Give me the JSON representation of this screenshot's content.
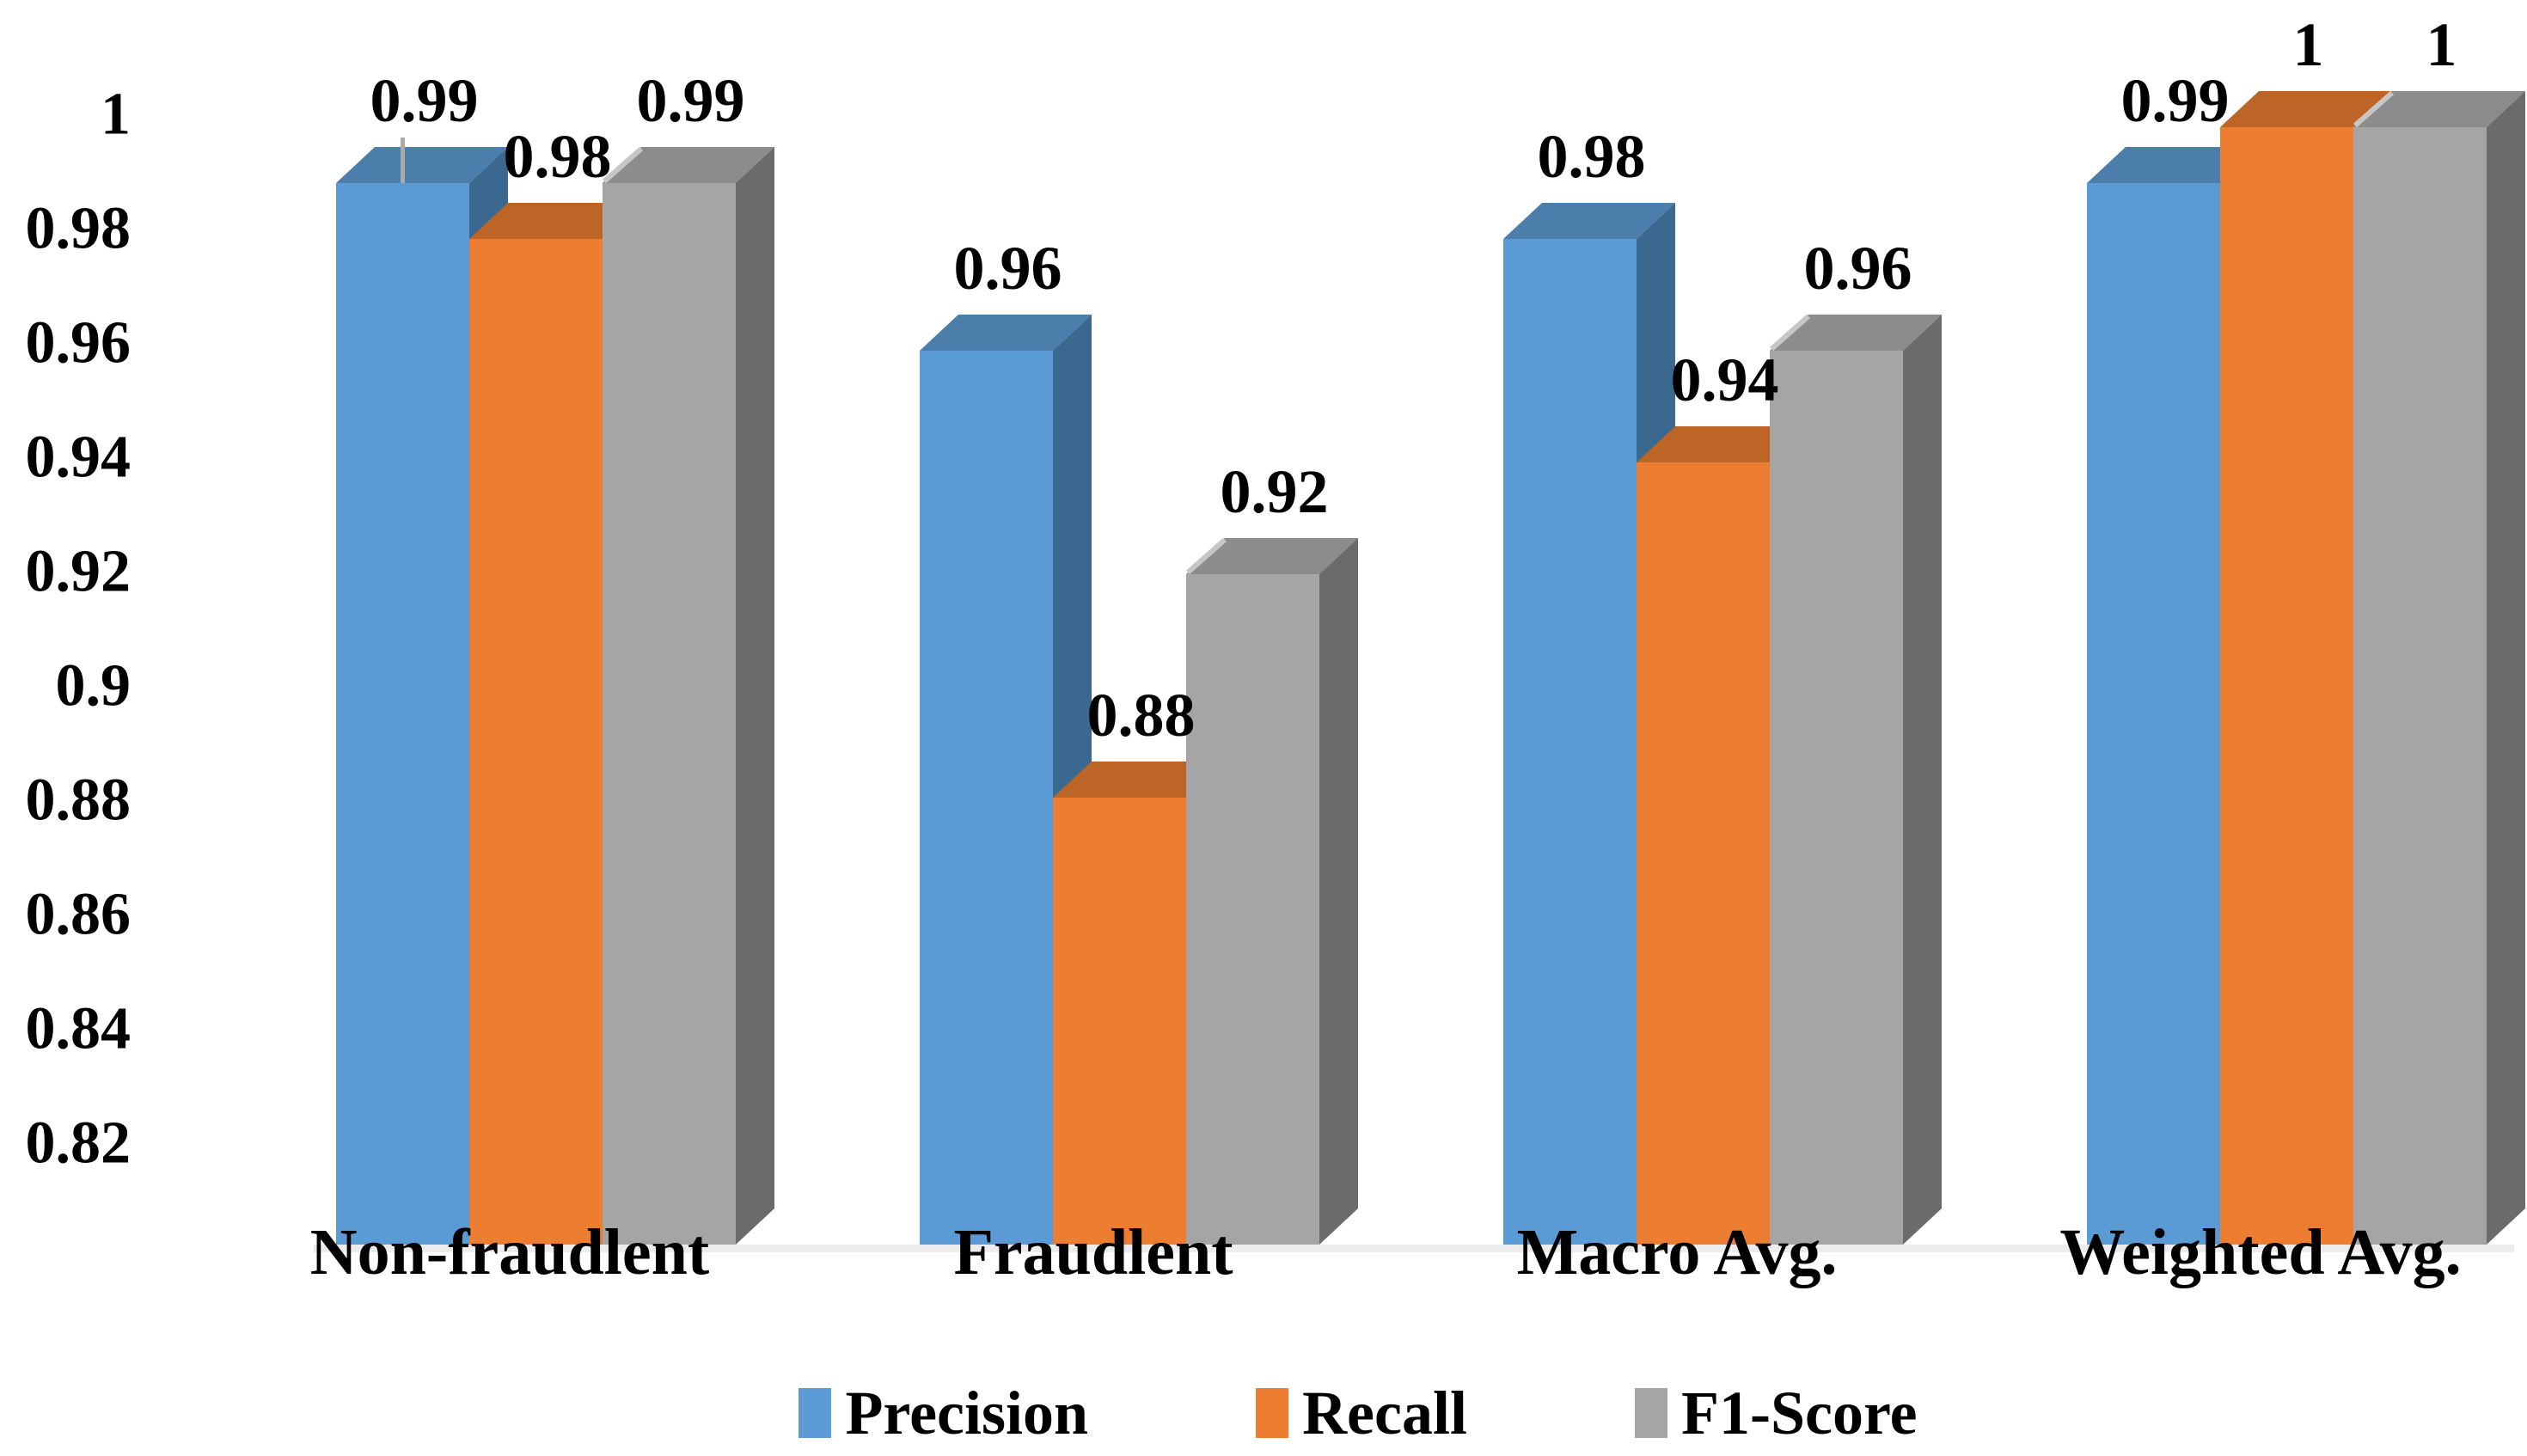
{
  "page": {
    "background": "#FFFFFF"
  },
  "chart_data": {
    "type": "bar",
    "style": "3d-clustered-column",
    "title": "",
    "categories": [
      "Non-fraudlent",
      "Fraudlent",
      "Macro Avg.",
      "Weighted Avg."
    ],
    "series": [
      {
        "name": "Precision",
        "values": [
          0.99,
          0.96,
          0.98,
          0.99
        ],
        "data_labels": [
          "0.99",
          "0.96",
          "0.98",
          "0.99"
        ],
        "front_color": "#5B9BD5",
        "top_color": "#4C7EAC",
        "side_color": "#3B688F"
      },
      {
        "name": "Recall",
        "values": [
          0.98,
          0.88,
          0.94,
          1
        ],
        "data_labels": [
          "0.98",
          "0.88",
          "0.94",
          "1"
        ],
        "front_color": "#ED7D31",
        "top_color": "#BC6527",
        "side_color": "#A85A23"
      },
      {
        "name": "F1-Score",
        "values": [
          0.99,
          0.92,
          0.96,
          1
        ],
        "data_labels": [
          "0.99",
          "0.92",
          "0.96",
          "1"
        ],
        "front_color": "#A5A5A5",
        "top_color": "#8C8C8C",
        "side_color": "#6B6B6B"
      }
    ],
    "y_axis": {
      "min": 0.82,
      "max": 1.0,
      "tick_step": 0.02,
      "tick_labels": [
        "1",
        "0.98",
        "0.96",
        "0.94",
        "0.92",
        "0.9",
        "0.88",
        "0.86",
        "0.84",
        "0.82"
      ]
    },
    "x_axis": {
      "labels": [
        "Non-fraudlent",
        "Fraudlent",
        "Macro Avg.",
        "Weighted Avg."
      ]
    },
    "legend": {
      "position": "bottom",
      "entries": [
        "Precision",
        "Recall",
        "F1-Score"
      ]
    },
    "gridlines": false,
    "text_color": "#000000",
    "floor_color": "#ECECEC",
    "error_tick": {
      "category_index": 0,
      "series_index": 0,
      "color": "#A9A9A9"
    }
  }
}
